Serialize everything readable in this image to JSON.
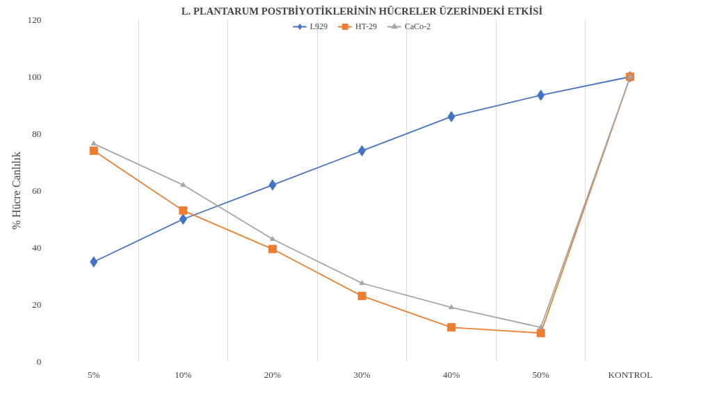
{
  "chart_data": {
    "type": "line",
    "title": "L. PLANTARUM POSTBİYOTİKLERİNİN HÜCRELER ÜZERİNDEKİ ETKİSİ",
    "ylabel": "% Hücre Canlılık",
    "categories": [
      "5%",
      "10%",
      "20%",
      "30%",
      "40%",
      "50%",
      "KONTROL"
    ],
    "series": [
      {
        "name": "L929",
        "color": "#4472c4",
        "marker": "diamond",
        "values": [
          35,
          50,
          62,
          74,
          86,
          93.5,
          100
        ]
      },
      {
        "name": "HT-29",
        "color": "#ed7d31",
        "marker": "square",
        "values": [
          74,
          53,
          39.5,
          23,
          12,
          10,
          100
        ]
      },
      {
        "name": "CaCo-2",
        "color": "#a5a5a5",
        "marker": "triangle",
        "values": [
          76.5,
          62,
          43,
          27.5,
          19,
          12,
          100
        ]
      }
    ],
    "ylim": [
      0,
      120
    ],
    "yticks": [
      0,
      20,
      40,
      60,
      80,
      100,
      120
    ],
    "grid": "x",
    "legend": "top",
    "line_style": "solid"
  }
}
